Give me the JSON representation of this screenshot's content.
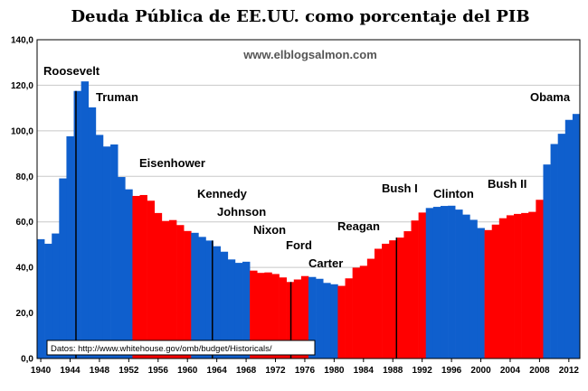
{
  "chart_data": {
    "type": "bar",
    "title": "Deuda Pública de EE.UU.  como porcentaje del PIB",
    "watermark": "www.elblogsalmon.com",
    "source": "Datos: http://www.whitehouse.gov/omb/budget/Historicals/",
    "xlabel": "",
    "ylabel": "",
    "ylim": [
      0,
      140
    ],
    "yticks": [
      "0,0",
      "20,0",
      "40,0",
      "60,0",
      "80,0",
      "100,0",
      "120,0",
      "140,0"
    ],
    "xtick_labels": [
      "1940",
      "1944",
      "1948",
      "1952",
      "1956",
      "1960",
      "1964",
      "1968",
      "1972",
      "1976",
      "1980",
      "1984",
      "1988",
      "1992",
      "1996",
      "2000",
      "2004",
      "2008",
      "2012"
    ],
    "grid": true,
    "colors": {
      "democrat": "#0f5fcd",
      "republican": "#ff0000"
    },
    "x": [
      1940,
      1941,
      1942,
      1943,
      1944,
      1945,
      1946,
      1947,
      1948,
      1949,
      1950,
      1951,
      1952,
      1953,
      1954,
      1955,
      1956,
      1957,
      1958,
      1959,
      1960,
      1961,
      1962,
      1963,
      1964,
      1965,
      1966,
      1967,
      1968,
      1969,
      1970,
      1971,
      1972,
      1973,
      1974,
      1975,
      1976,
      1977,
      1978,
      1979,
      1980,
      1981,
      1982,
      1983,
      1984,
      1985,
      1986,
      1987,
      1988,
      1989,
      1990,
      1991,
      1992,
      1993,
      1994,
      1995,
      1996,
      1997,
      1998,
      1999,
      2000,
      2001,
      2002,
      2003,
      2004,
      2005,
      2006,
      2007,
      2008,
      2009,
      2010,
      2011,
      2012,
      2013
    ],
    "values": [
      52.4,
      50.4,
      54.9,
      79.1,
      97.6,
      117.5,
      121.7,
      110.3,
      98.2,
      93.1,
      94.0,
      79.7,
      74.3,
      71.4,
      71.8,
      69.3,
      63.9,
      60.4,
      60.8,
      58.6,
      56.0,
      55.2,
      53.4,
      51.8,
      49.3,
      46.9,
      43.5,
      42.0,
      42.5,
      38.6,
      37.6,
      37.8,
      37.1,
      35.6,
      33.6,
      34.7,
      36.2,
      35.8,
      35.0,
      33.2,
      32.6,
      31.9,
      35.2,
      39.9,
      40.7,
      43.8,
      48.2,
      50.4,
      51.9,
      53.1,
      55.9,
      60.6,
      64.1,
      66.1,
      66.6,
      67.0,
      67.1,
      65.4,
      63.2,
      60.9,
      57.3,
      56.4,
      58.8,
      61.6,
      62.9,
      63.5,
      63.9,
      64.4,
      69.7,
      85.2,
      94.2,
      98.7,
      104.8,
      107.4
    ],
    "party": [
      "D",
      "D",
      "D",
      "D",
      "D",
      "D",
      "D",
      "D",
      "D",
      "D",
      "D",
      "D",
      "D",
      "R",
      "R",
      "R",
      "R",
      "R",
      "R",
      "R",
      "R",
      "D",
      "D",
      "D",
      "D",
      "D",
      "D",
      "D",
      "D",
      "R",
      "R",
      "R",
      "R",
      "R",
      "R",
      "R",
      "R",
      "D",
      "D",
      "D",
      "D",
      "R",
      "R",
      "R",
      "R",
      "R",
      "R",
      "R",
      "R",
      "R",
      "R",
      "R",
      "R",
      "D",
      "D",
      "D",
      "D",
      "D",
      "D",
      "D",
      "D",
      "R",
      "R",
      "R",
      "R",
      "R",
      "R",
      "R",
      "R",
      "D",
      "D",
      "D",
      "D",
      "D"
    ],
    "president_labels": [
      "Roosevelt",
      "Truman",
      "Eisenhower",
      "Kennedy",
      "Johnson",
      "Nixon",
      "Ford",
      "Carter",
      "Reagan",
      "Bush I",
      "Clinton",
      "Bush II",
      "Obama"
    ],
    "term_divider_years": [
      1945.3,
      1963.9,
      1974.6,
      1989.0
    ]
  }
}
